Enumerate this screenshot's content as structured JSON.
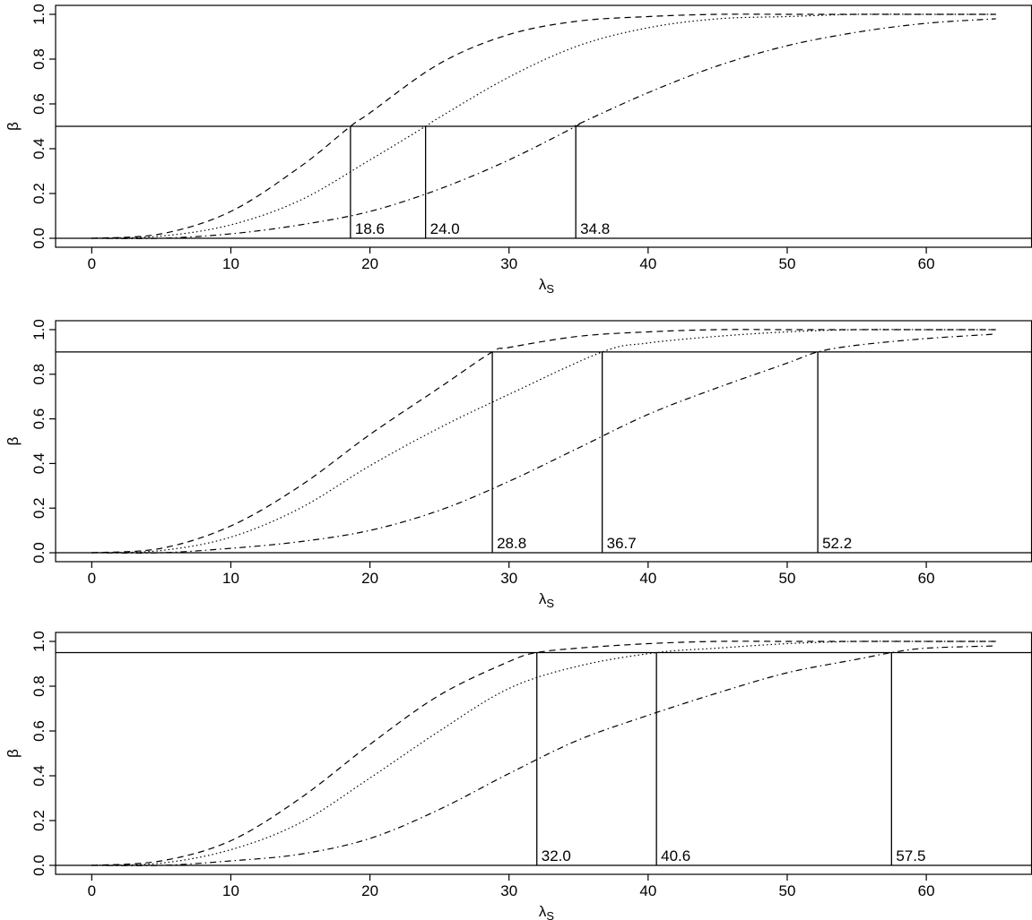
{
  "chart_data": [
    {
      "type": "line",
      "xlabel": "λ",
      "xlabel_sub": "S",
      "ylabel": "β",
      "xlim": [
        -2.6,
        67.6
      ],
      "ylim": [
        -0.04,
        1.04
      ],
      "xticks": [
        0,
        10,
        20,
        30,
        40,
        50,
        60
      ],
      "yticks": [
        0.0,
        0.2,
        0.4,
        0.6,
        0.8,
        1.0
      ],
      "xtick_labels": [
        "0",
        "10",
        "20",
        "30",
        "40",
        "50",
        "60"
      ],
      "ytick_labels": [
        "0.0",
        "0.2",
        "0.4",
        "0.6",
        "0.8",
        "1.0"
      ],
      "grid": false,
      "hlines": [
        0.0,
        0.5
      ],
      "series": [
        {
          "style": "dashed",
          "x": [
            0,
            5,
            10,
            15,
            18.6,
            20,
            25,
            30,
            35,
            40,
            45,
            50,
            55,
            60,
            65
          ],
          "y": [
            0.0,
            0.02,
            0.12,
            0.32,
            0.5,
            0.56,
            0.78,
            0.91,
            0.97,
            0.99,
            1.0,
            1.0,
            1.0,
            1.0,
            1.0
          ]
        },
        {
          "style": "dotted",
          "x": [
            0,
            5,
            10,
            15,
            20,
            24.0,
            25,
            30,
            35,
            40,
            45,
            50,
            55,
            60,
            65
          ],
          "y": [
            0.0,
            0.01,
            0.06,
            0.17,
            0.35,
            0.5,
            0.54,
            0.72,
            0.86,
            0.94,
            0.98,
            0.99,
            1.0,
            1.0,
            1.0
          ]
        },
        {
          "style": "dashdot",
          "x": [
            0,
            5,
            10,
            15,
            20,
            25,
            30,
            34.8,
            35,
            40,
            45,
            50,
            55,
            60,
            65
          ],
          "y": [
            0.0,
            0.0,
            0.02,
            0.06,
            0.12,
            0.22,
            0.35,
            0.5,
            0.51,
            0.65,
            0.77,
            0.86,
            0.92,
            0.96,
            0.98
          ]
        }
      ],
      "vlines": [
        {
          "x": 18.6,
          "label": "18.6"
        },
        {
          "x": 24.0,
          "label": "24.0"
        },
        {
          "x": 34.8,
          "label": "34.8"
        }
      ]
    },
    {
      "type": "line",
      "xlabel": "λ",
      "xlabel_sub": "S",
      "ylabel": "β",
      "xlim": [
        -2.6,
        67.6
      ],
      "ylim": [
        -0.04,
        1.04
      ],
      "xticks": [
        0,
        10,
        20,
        30,
        40,
        50,
        60
      ],
      "yticks": [
        0.0,
        0.2,
        0.4,
        0.6,
        0.8,
        1.0
      ],
      "xtick_labels": [
        "0",
        "10",
        "20",
        "30",
        "40",
        "50",
        "60"
      ],
      "ytick_labels": [
        "0.0",
        "0.2",
        "0.4",
        "0.6",
        "0.8",
        "1.0"
      ],
      "grid": false,
      "hlines": [
        0.0,
        0.9
      ],
      "series": [
        {
          "style": "dashed",
          "x": [
            0,
            5,
            10,
            15,
            20,
            25,
            28.8,
            30,
            35,
            40,
            45,
            50,
            55,
            60,
            65
          ],
          "y": [
            0.0,
            0.02,
            0.12,
            0.3,
            0.53,
            0.74,
            0.9,
            0.92,
            0.97,
            0.99,
            1.0,
            1.0,
            1.0,
            1.0,
            1.0
          ]
        },
        {
          "style": "dotted",
          "x": [
            0,
            5,
            10,
            15,
            20,
            25,
            30,
            36.7,
            40,
            45,
            50,
            55,
            60,
            65
          ],
          "y": [
            0.0,
            0.01,
            0.07,
            0.2,
            0.39,
            0.56,
            0.71,
            0.9,
            0.94,
            0.97,
            0.99,
            1.0,
            1.0,
            1.0
          ]
        },
        {
          "style": "dashdot",
          "x": [
            0,
            5,
            10,
            15,
            20,
            25,
            30,
            35,
            40,
            45,
            50,
            52.2,
            55,
            60,
            65
          ],
          "y": [
            0.0,
            0.0,
            0.02,
            0.05,
            0.1,
            0.19,
            0.32,
            0.47,
            0.62,
            0.74,
            0.85,
            0.9,
            0.93,
            0.96,
            0.98
          ]
        }
      ],
      "vlines": [
        {
          "x": 28.8,
          "label": "28.8"
        },
        {
          "x": 36.7,
          "label": "36.7"
        },
        {
          "x": 52.2,
          "label": "52.2"
        }
      ]
    },
    {
      "type": "line",
      "xlabel": "λ",
      "xlabel_sub": "S",
      "ylabel": "β",
      "xlim": [
        -2.6,
        67.6
      ],
      "ylim": [
        -0.04,
        1.04
      ],
      "xticks": [
        0,
        10,
        20,
        30,
        40,
        50,
        60
      ],
      "yticks": [
        0.0,
        0.2,
        0.4,
        0.6,
        0.8,
        1.0
      ],
      "xtick_labels": [
        "0",
        "10",
        "20",
        "30",
        "40",
        "50",
        "60"
      ],
      "ytick_labels": [
        "0.0",
        "0.2",
        "0.4",
        "0.6",
        "0.8",
        "1.0"
      ],
      "grid": false,
      "hlines": [
        0.0,
        0.95
      ],
      "series": [
        {
          "style": "dashed",
          "x": [
            0,
            5,
            10,
            15,
            20,
            25,
            30,
            32.0,
            35,
            40,
            45,
            50,
            55,
            60,
            65
          ],
          "y": [
            0.0,
            0.02,
            0.11,
            0.3,
            0.54,
            0.76,
            0.91,
            0.95,
            0.97,
            0.99,
            1.0,
            1.0,
            1.0,
            1.0,
            1.0
          ]
        },
        {
          "style": "dotted",
          "x": [
            0,
            5,
            10,
            15,
            20,
            25,
            30,
            35,
            40.6,
            45,
            50,
            55,
            60,
            65
          ],
          "y": [
            0.0,
            0.01,
            0.07,
            0.19,
            0.39,
            0.6,
            0.79,
            0.89,
            0.95,
            0.97,
            0.99,
            1.0,
            1.0,
            1.0
          ]
        },
        {
          "style": "dashdot",
          "x": [
            0,
            5,
            10,
            15,
            20,
            25,
            30,
            35,
            40,
            45,
            50,
            55,
            57.5,
            60,
            65
          ],
          "y": [
            0.0,
            0.0,
            0.02,
            0.05,
            0.12,
            0.25,
            0.41,
            0.56,
            0.67,
            0.77,
            0.86,
            0.92,
            0.95,
            0.97,
            0.98
          ]
        }
      ],
      "vlines": [
        {
          "x": 32.0,
          "label": "32.0"
        },
        {
          "x": 40.6,
          "label": "40.6"
        },
        {
          "x": 57.5,
          "label": "57.5"
        }
      ]
    }
  ]
}
